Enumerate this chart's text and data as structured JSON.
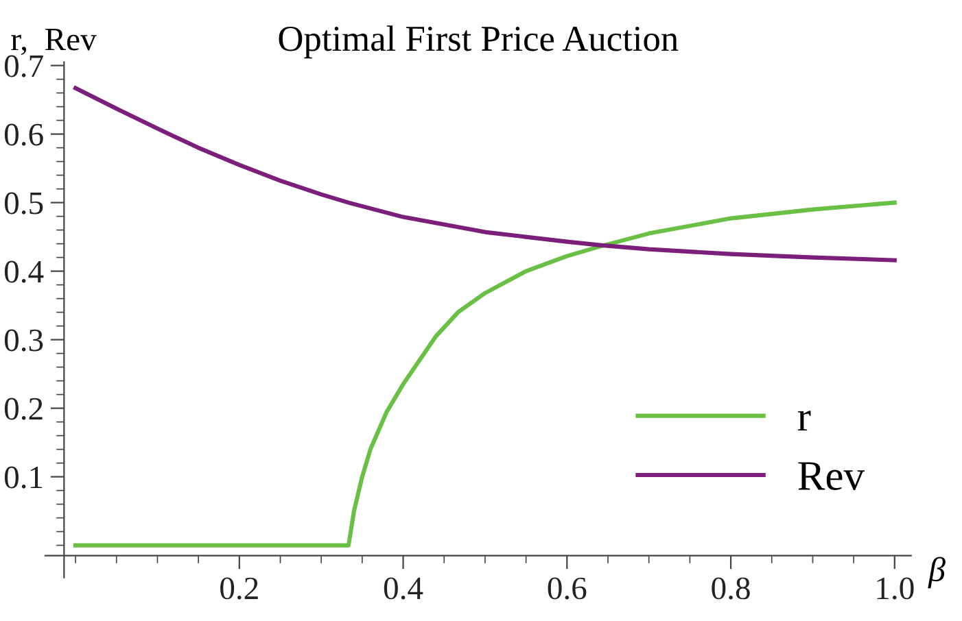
{
  "chart_data": {
    "type": "line",
    "title": "Optimal First Price Auction",
    "xlabel": "β",
    "ylabel": "r,  Rev",
    "series": [
      {
        "name": "r",
        "color": "#6abf45",
        "x": [
          0,
          0.1,
          0.2,
          0.3,
          0.3333,
          0.34,
          0.35,
          0.36,
          0.38,
          0.4,
          0.42,
          0.44,
          0.467,
          0.5,
          0.55,
          0.6,
          0.64,
          0.7,
          0.8,
          0.9,
          1.0
        ],
        "values": [
          0,
          0,
          0,
          0,
          0,
          0.05,
          0.1,
          0.14,
          0.195,
          0.235,
          0.27,
          0.305,
          0.34,
          0.368,
          0.4,
          0.422,
          0.436,
          0.455,
          0.477,
          0.49,
          0.5
        ]
      },
      {
        "name": "Rev",
        "color": "#7b1f7b",
        "x": [
          0,
          0.05,
          0.1,
          0.15,
          0.2,
          0.25,
          0.3,
          0.3333,
          0.4,
          0.5,
          0.6,
          0.64,
          0.7,
          0.8,
          0.9,
          1.0
        ],
        "values": [
          0.667,
          0.637,
          0.608,
          0.58,
          0.555,
          0.532,
          0.512,
          0.5,
          0.479,
          0.457,
          0.443,
          0.438,
          0.432,
          0.425,
          0.42,
          0.416
        ]
      }
    ],
    "xlim": [
      -0.037,
      1.02
    ],
    "ylim": [
      -0.047,
      0.705
    ],
    "xticks": [
      {
        "value": 0,
        "label": null
      },
      {
        "value": 0.05,
        "label": null
      },
      {
        "value": 0.1,
        "label": null
      },
      {
        "value": 0.15,
        "label": null
      },
      0.2,
      {
        "value": 0.25,
        "label": null
      },
      {
        "value": 0.3,
        "label": null
      },
      {
        "value": 0.35,
        "label": null
      },
      0.4,
      {
        "value": 0.45,
        "label": null
      },
      {
        "value": 0.5,
        "label": null
      },
      {
        "value": 0.55,
        "label": null
      },
      0.6,
      {
        "value": 0.65,
        "label": null
      },
      {
        "value": 0.7,
        "label": null
      },
      {
        "value": 0.75,
        "label": null
      },
      0.8,
      {
        "value": 0.85,
        "label": null
      },
      {
        "value": 0.9,
        "label": null
      },
      {
        "value": 0.95,
        "label": null
      },
      {
        "value": 1.0,
        "label": "1.0"
      }
    ],
    "yticks": [
      {
        "value": 0,
        "label": null
      },
      {
        "value": 0.02,
        "label": null
      },
      {
        "value": 0.04,
        "label": null
      },
      {
        "value": 0.06,
        "label": null
      },
      {
        "value": 0.08,
        "label": null
      },
      0.1,
      {
        "value": 0.12,
        "label": null
      },
      {
        "value": 0.14,
        "label": null
      },
      {
        "value": 0.16,
        "label": null
      },
      {
        "value": 0.18,
        "label": null
      },
      0.2,
      {
        "value": 0.22,
        "label": null
      },
      {
        "value": 0.24,
        "label": null
      },
      {
        "value": 0.26,
        "label": null
      },
      {
        "value": 0.28,
        "label": null
      },
      0.3,
      {
        "value": 0.32,
        "label": null
      },
      {
        "value": 0.34,
        "label": null
      },
      {
        "value": 0.36,
        "label": null
      },
      {
        "value": 0.38,
        "label": null
      },
      0.4,
      {
        "value": 0.42,
        "label": null
      },
      {
        "value": 0.44,
        "label": null
      },
      {
        "value": 0.46,
        "label": null
      },
      {
        "value": 0.48,
        "label": null
      },
      0.5,
      {
        "value": 0.52,
        "label": null
      },
      {
        "value": 0.54,
        "label": null
      },
      {
        "value": 0.56,
        "label": null
      },
      {
        "value": 0.58,
        "label": null
      },
      0.6,
      {
        "value": 0.62,
        "label": null
      },
      {
        "value": 0.64,
        "label": null
      },
      {
        "value": 0.66,
        "label": null
      },
      {
        "value": 0.68,
        "label": null
      },
      0.7
    ],
    "grid": false,
    "legend": "bottom right",
    "marker": "none",
    "line_style": "solid"
  }
}
